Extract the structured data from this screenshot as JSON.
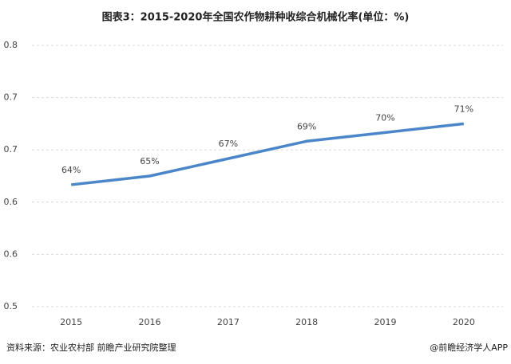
{
  "chart_data": {
    "type": "line",
    "title": "图表3：2015-2020年全国农作物耕种收综合机械化率(单位：%)",
    "categories": [
      "2015",
      "2016",
      "2017",
      "2018",
      "2019",
      "2020"
    ],
    "series": [
      {
        "name": "综合机械化率",
        "color": "#4a86c8",
        "values": [
          0.64,
          0.65,
          0.67,
          0.69,
          0.7,
          0.71
        ],
        "value_labels": [
          "64%",
          "65%",
          "67%",
          "69%",
          "70%",
          "71%"
        ]
      }
    ],
    "ylim": [
      0.5,
      0.8
    ],
    "yticks": [
      {
        "value": 0.8,
        "label": "0.8"
      },
      {
        "value": 0.74,
        "label": "0.7"
      },
      {
        "value": 0.68,
        "label": "0.7"
      },
      {
        "value": 0.62,
        "label": "0.6"
      },
      {
        "value": 0.56,
        "label": "0.6"
      },
      {
        "value": 0.5,
        "label": "0.5"
      }
    ],
    "grid": true,
    "source": "资料来源：农业农村部 前瞻产业研究院整理",
    "credit": "@前瞻经济学人APP"
  }
}
